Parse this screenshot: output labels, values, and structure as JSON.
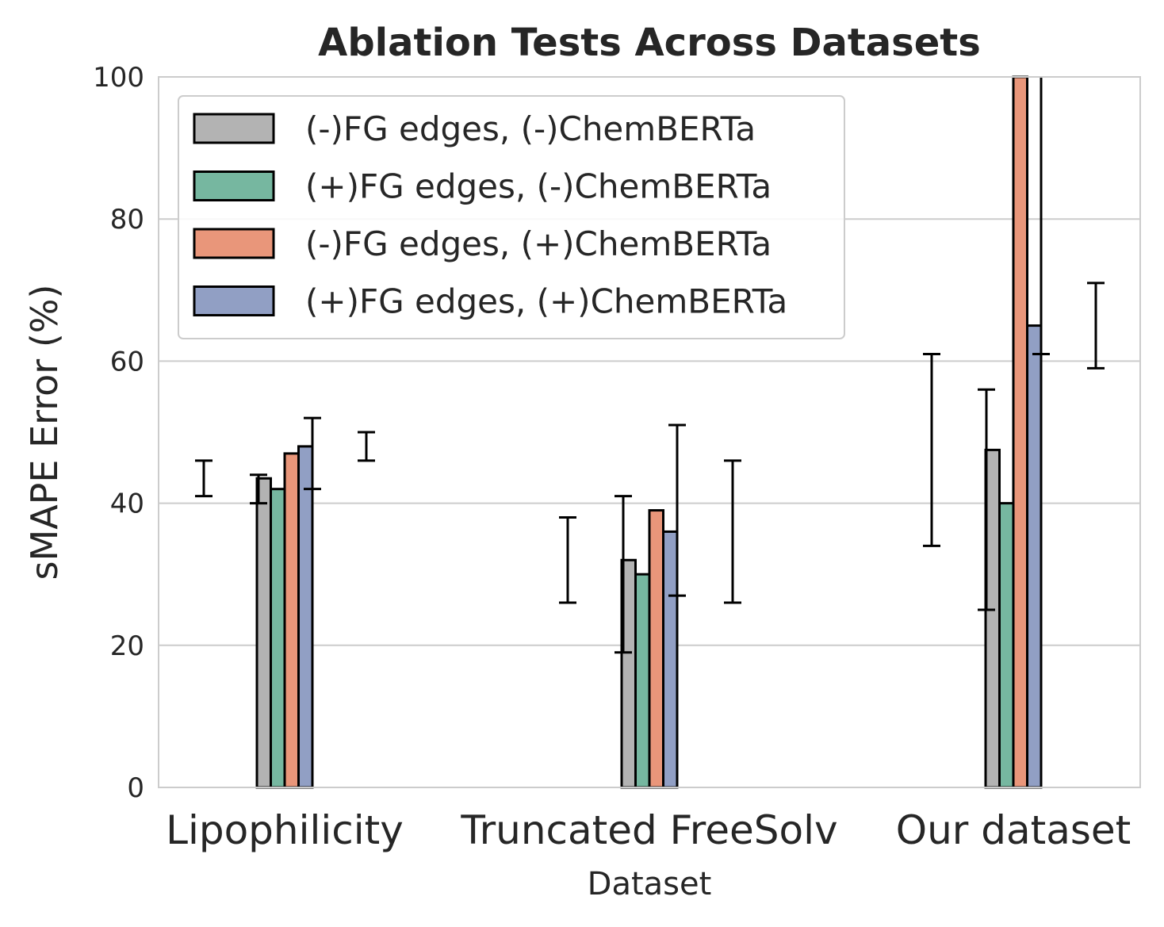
{
  "chart_data": {
    "type": "bar",
    "title": "Ablation Tests Across Datasets",
    "xlabel": "Dataset",
    "ylabel": "sMAPE Error (%)",
    "ylim": [
      0,
      100
    ],
    "yticks": [
      "0",
      "20",
      "40",
      "60",
      "80",
      "100"
    ],
    "grid": "y",
    "legend_position": "top-left",
    "categories": [
      "Lipophilicity",
      "Truncated FreeSolv",
      "Our dataset"
    ],
    "series": [
      {
        "name": "(-)FG edges, (-)ChemBERTa",
        "color": "#b3b3b3",
        "values": [
          43.5,
          32,
          47.5
        ],
        "errors": [
          [
            40,
            44
          ],
          [
            19,
            41
          ],
          [
            25,
            56
          ]
        ]
      },
      {
        "name": "(+)FG edges, (-)ChemBERTa",
        "color": "#76b7a0",
        "values": [
          42,
          30,
          40
        ],
        "errors": [
          [
            41,
            46
          ],
          [
            26,
            38
          ],
          [
            34,
            61
          ]
        ]
      },
      {
        "name": "(-)FG edges, (+)ChemBERTa",
        "color": "#e9967a",
        "values": [
          47,
          39,
          100
        ],
        "errors": [
          [
            42,
            52
          ],
          [
            27,
            51
          ],
          [
            61,
            100
          ]
        ]
      },
      {
        "name": "(+)FG edges, (+)ChemBERTa",
        "color": "#919fc4",
        "values": [
          48,
          36,
          65
        ],
        "errors": [
          [
            46,
            50
          ],
          [
            26,
            46
          ],
          [
            59,
            71
          ]
        ]
      }
    ],
    "misaligned_error_bars": [
      {
        "category": "Lipophilicity",
        "series": "(+)FG edges, (-)ChemBERTa",
        "range": [
          41,
          46
        ]
      },
      {
        "category": "Lipophilicity",
        "series": "(+)FG edges, (+)ChemBERTa",
        "range": [
          46,
          50
        ]
      },
      {
        "category": "Truncated FreeSolv",
        "series": "(+)FG edges, (-)ChemBERTa",
        "range": [
          26,
          38
        ]
      },
      {
        "category": "Truncated FreeSolv",
        "series": "(+)FG edges, (+)ChemBERTa",
        "range": [
          26,
          46
        ]
      },
      {
        "category": "Our dataset",
        "series": "(+)FG edges, (-)ChemBERTa",
        "range": [
          34,
          61
        ]
      },
      {
        "category": "Our dataset",
        "series": "(+)FG edges, (+)ChemBERTa",
        "range": [
          59,
          71
        ]
      }
    ]
  }
}
